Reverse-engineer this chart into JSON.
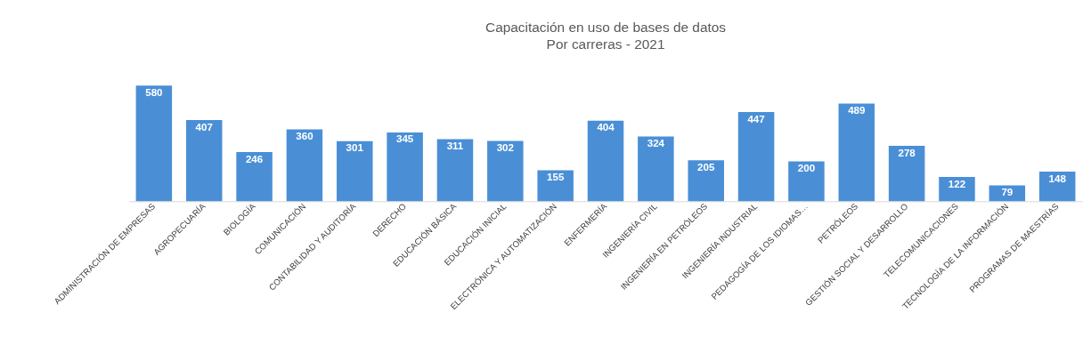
{
  "chart_data": {
    "type": "bar",
    "title": "Capacitación  en uso de bases de datos",
    "subtitle": "Por carreras - 2021",
    "categories": [
      "ADMINISTRACIÓN DE EMPRESAS",
      "AGROPECUARÍA",
      "BIOLOGÍA",
      "COMUNICACIÓN",
      "CONTABILIDAD Y AUDITORÍA",
      "DERECHO",
      "EDUCACIÓN BÁSICA",
      "EDUCACIÓN INICIAL",
      "ELECTRÓNICA Y AUTOMATIZACIÓN",
      "ENFERMERÍA",
      "INGENIERÍA CIVIL",
      "INGENIERÍA EN PETRÓLEOS",
      "INGENIERÍA INDUSTRIAL",
      "PEDAGOGÍA DE LOS IDIOMAS…",
      "PETRÓLEOS",
      "GESTIÓN SOCIAL Y DESARROLLO",
      "TELECOMUNICACIONES",
      "TECNOLOGÍA DE LA INFORMACIÓN",
      "PROGRAMAS DE MAESTRÍAS"
    ],
    "values": [
      580,
      407,
      246,
      360,
      301,
      345,
      311,
      302,
      155,
      404,
      324,
      205,
      447,
      200,
      489,
      278,
      122,
      79,
      148
    ],
    "color": "#4a8fd6",
    "data_labels": true,
    "grid": false
  }
}
